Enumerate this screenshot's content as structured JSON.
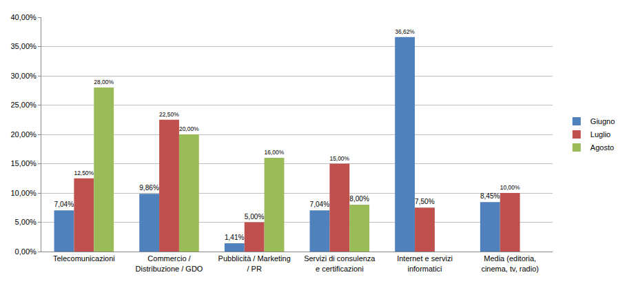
{
  "chart_data": {
    "type": "bar",
    "categories": [
      "Telecomunicazioni",
      "Commercio / Distribuzione / GDO",
      "Pubblicità / Marketing / PR",
      "Servizi di consulenza e certificazioni",
      "Internet e servizi informatici",
      "Media (editoria, cinema, tv, radio)"
    ],
    "series": [
      {
        "name": "Giugno",
        "color": "#4f81bd",
        "values": [
          7.04,
          9.86,
          1.41,
          7.04,
          36.62,
          8.45
        ],
        "value_labels": [
          "7,04%",
          "9,86%",
          "1,41%",
          "7,04%",
          "36,62%",
          "8,45%"
        ]
      },
      {
        "name": "Luglio",
        "color": "#c0504d",
        "values": [
          12.5,
          22.5,
          5,
          15,
          7.5,
          10
        ],
        "value_labels": [
          "12,50%",
          "22,50%",
          "5,00%",
          "15,00%",
          "7,50%",
          "10,00%"
        ]
      },
      {
        "name": "Agosto",
        "color": "#9bbb59",
        "values": [
          28,
          20,
          16,
          8,
          0,
          0
        ],
        "value_labels": [
          "28,00%",
          "20,00%",
          "16,00%",
          "8,00%",
          null,
          null
        ]
      }
    ],
    "ylim": [
      0,
      40
    ],
    "yticks": [
      {
        "value": 0,
        "label": "0,00%"
      },
      {
        "value": 5,
        "label": "5,00%"
      },
      {
        "value": 10,
        "label": "10,00%"
      },
      {
        "value": 15,
        "label": "15,00%"
      },
      {
        "value": 20,
        "label": "20,00%"
      },
      {
        "value": 25,
        "label": "25,00%"
      },
      {
        "value": 30,
        "label": "30,00%"
      },
      {
        "value": 35,
        "label": "35,00%"
      },
      {
        "value": 40,
        "label": "40,00%"
      }
    ],
    "grid": true,
    "legend": "right",
    "data_labels": true
  }
}
